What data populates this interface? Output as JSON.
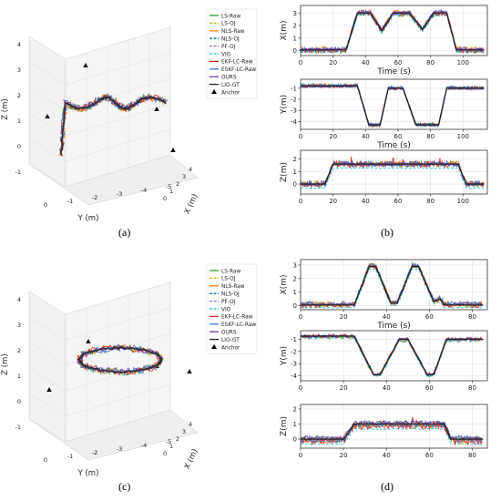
{
  "captions": {
    "a": "(a)",
    "b": "(b)",
    "c": "(c)",
    "d": "(d)"
  },
  "legend": {
    "entries": [
      {
        "label": "LS-Raw",
        "color": "#2ca02c",
        "dash": "solid"
      },
      {
        "label": "LS-OJ",
        "color": "#bcbd22",
        "dash": "dashed"
      },
      {
        "label": "NLS-Raw",
        "color": "#ff7f0e",
        "dash": "solid"
      },
      {
        "label": "NLS-OJ",
        "color": "#1f77b4",
        "dash": "dashed"
      },
      {
        "label": "PF-OJ",
        "color": "#9467bd",
        "dash": "dashed"
      },
      {
        "label": "VIO",
        "color": "#17becf",
        "dash": "dashed"
      },
      {
        "label": "EKF-LC-Raw",
        "color": "#d62728",
        "dash": "solid"
      },
      {
        "label": "ESKF-LC-Raw",
        "color": "#4169e1",
        "dash": "solid"
      },
      {
        "label": "OURS",
        "color": "#6a3d9a",
        "dash": "solid"
      },
      {
        "label": "LIO-GT",
        "color": "#222222",
        "dash": "solid"
      },
      {
        "label": "Anchor",
        "color": "#000000",
        "marker": "triangle"
      }
    ]
  },
  "axes3d": {
    "zlabel": "Z (m)",
    "ylabel": "Y (m)",
    "xlabel": "X (m)",
    "zticks": [
      "4",
      "3",
      "2",
      "1",
      "0",
      "-1"
    ],
    "yticks": [
      "0",
      "-1",
      "-2",
      "-3",
      "-4",
      "-5"
    ],
    "xticks": [
      "4",
      "3",
      "2",
      "1",
      "0"
    ]
  },
  "chart_data": [
    {
      "id": "b",
      "type": "line",
      "subplots": [
        {
          "ylabel": "X(m)",
          "xlabel": "Time (s)",
          "xlim": [
            0,
            115
          ],
          "ylim": [
            -0.4,
            3.6
          ],
          "xticks": [
            0,
            20,
            40,
            60,
            80,
            100
          ],
          "yticks": [
            0,
            1,
            2,
            3
          ],
          "gt": [
            [
              0,
              0.05
            ],
            [
              28,
              0.05
            ],
            [
              35,
              3.0
            ],
            [
              43,
              3.0
            ],
            [
              50,
              1.6
            ],
            [
              57,
              3.0
            ],
            [
              67,
              3.0
            ],
            [
              75,
              1.7
            ],
            [
              82,
              3.0
            ],
            [
              90,
              3.0
            ],
            [
              96,
              0.05
            ],
            [
              113,
              0.05
            ]
          ]
        },
        {
          "ylabel": "Y(m)",
          "xlabel": "Time (s)",
          "xlim": [
            0,
            115
          ],
          "ylim": [
            -4.7,
            -0.2
          ],
          "xticks": [
            0,
            20,
            40,
            60,
            80,
            100
          ],
          "yticks": [
            -1,
            -2,
            -3,
            -4
          ],
          "gt": [
            [
              0,
              -0.8
            ],
            [
              35,
              -0.8
            ],
            [
              42,
              -4.3
            ],
            [
              49,
              -4.3
            ],
            [
              54,
              -1.0
            ],
            [
              63,
              -1.0
            ],
            [
              71,
              -4.3
            ],
            [
              85,
              -4.3
            ],
            [
              90,
              -1.0
            ],
            [
              113,
              -1.0
            ]
          ]
        },
        {
          "ylabel": "Z(m)",
          "xlabel": "",
          "xlim": [
            0,
            115
          ],
          "ylim": [
            -0.8,
            2.7
          ],
          "xticks": [
            0,
            20,
            40,
            60,
            80,
            100
          ],
          "yticks": [
            0,
            1,
            2
          ],
          "gt": [
            [
              0,
              0.0
            ],
            [
              15,
              0.0
            ],
            [
              20,
              1.6
            ],
            [
              97,
              1.6
            ],
            [
              102,
              0.0
            ],
            [
              113,
              0.0
            ]
          ]
        }
      ]
    },
    {
      "id": "d",
      "type": "line",
      "subplots": [
        {
          "ylabel": "X(m)",
          "xlabel": "Time (s)",
          "xlim": [
            0,
            87
          ],
          "ylim": [
            -0.3,
            3.4
          ],
          "xticks": [
            0,
            20,
            40,
            60,
            80
          ],
          "yticks": [
            0,
            1,
            2,
            3
          ],
          "gt": [
            [
              0,
              0.05
            ],
            [
              25,
              0.05
            ],
            [
              32,
              2.9
            ],
            [
              35,
              2.9
            ],
            [
              42,
              0.2
            ],
            [
              45,
              0.2
            ],
            [
              52,
              2.9
            ],
            [
              55,
              2.9
            ],
            [
              62,
              0.3
            ],
            [
              65,
              0.5
            ],
            [
              67,
              0.05
            ],
            [
              85,
              0.05
            ]
          ]
        },
        {
          "ylabel": "Y(m)",
          "xlabel": "",
          "xlim": [
            0,
            87
          ],
          "ylim": [
            -4.4,
            -0.3
          ],
          "xticks": [
            0,
            20,
            40,
            60,
            80
          ],
          "yticks": [
            -1,
            -2,
            -3,
            -4
          ],
          "gt": [
            [
              0,
              -0.75
            ],
            [
              25,
              -0.75
            ],
            [
              34,
              -3.9
            ],
            [
              37,
              -3.9
            ],
            [
              46,
              -1.0
            ],
            [
              50,
              -1.0
            ],
            [
              59,
              -3.9
            ],
            [
              62,
              -3.9
            ],
            [
              68,
              -1.0
            ],
            [
              85,
              -1.0
            ]
          ]
        },
        {
          "ylabel": "Z(m)",
          "xlabel": "",
          "xlim": [
            0,
            87
          ],
          "ylim": [
            -0.6,
            2.3
          ],
          "xticks": [
            0,
            20,
            40,
            60,
            80
          ],
          "yticks": [
            0,
            1,
            2
          ],
          "gt": [
            [
              0,
              0.0
            ],
            [
              20,
              0.0
            ],
            [
              25,
              1.0
            ],
            [
              67,
              1.0
            ],
            [
              70,
              0.0
            ],
            [
              85,
              0.0
            ]
          ]
        }
      ]
    }
  ]
}
